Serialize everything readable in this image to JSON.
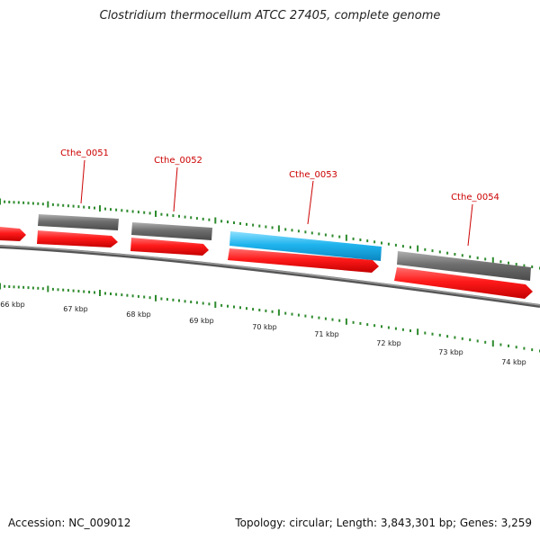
{
  "header": {
    "title": "Clostridium thermocellum ATCC 27405, complete genome"
  },
  "footer": {
    "accession": "Accession: NC_009012",
    "summary": "Topology: circular; Length: 3,843,301 bp; Genes: 3,259"
  },
  "colors": {
    "backbone": "#7a7a7a",
    "tick": "#2e8b2e",
    "cds_forward": "#ff1a1a",
    "gene_gray": "#6e6e6e",
    "gene_highlight": "#1fb4ee",
    "gene_label": "#cc0000"
  },
  "genome_map": {
    "scale_labels": [
      "66 kbp",
      "67 kbp",
      "68 kbp",
      "69 kbp",
      "70 kbp",
      "71 kbp",
      "72 kbp",
      "73 kbp",
      "74 kbp"
    ],
    "gene_labels": [
      "Cthe_0051",
      "Cthe_0052",
      "Cthe_0053",
      "Cthe_0054"
    ],
    "highlighted_gene": "Cthe_0053"
  }
}
